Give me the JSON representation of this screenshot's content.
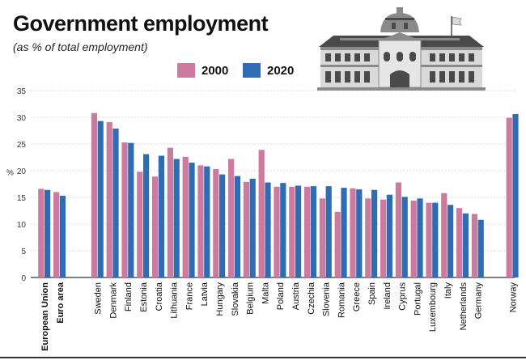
{
  "title": "Government employment",
  "subtitle": "(as % of total employment)",
  "icons": {
    "illustration": "government-building-icon"
  },
  "colors": {
    "s2000": "#cc7aa0",
    "s2020": "#2f6cb3",
    "grid": "#cccccc",
    "building_dark": "#4a4a4a",
    "building_mid": "#8a8a8a",
    "building_light": "#d9d9d9"
  },
  "chart_data": {
    "type": "bar",
    "title": "Government employment",
    "subtitle": "(as % of total employment)",
    "ylabel": "%",
    "ylim": [
      0,
      35
    ],
    "yticks": [
      0,
      5,
      10,
      15,
      20,
      25,
      30,
      35
    ],
    "grid": true,
    "legend": "top",
    "categories": [
      "European Union",
      "Euro area",
      "Sweden",
      "Denmark",
      "Finland",
      "Estonia",
      "Croatia",
      "Lithuania",
      "France",
      "Latvia",
      "Hungary",
      "Slovakia",
      "Belgium",
      "Malta",
      "Poland",
      "Austria",
      "Czechia",
      "Slovenia",
      "Romania",
      "Greece",
      "Spain",
      "Ireland",
      "Cyprus",
      "Portugal",
      "Luxembourg",
      "Italy",
      "Netherlands",
      "Germany",
      "Norway"
    ],
    "bold_categories": [
      "European Union",
      "Euro area"
    ],
    "series": [
      {
        "name": "2000",
        "color": "#cc7aa0",
        "values": [
          16.6,
          16.0,
          30.8,
          29.1,
          25.3,
          19.8,
          18.9,
          24.3,
          22.6,
          21.0,
          20.3,
          22.2,
          17.9,
          23.9,
          17.0,
          17.0,
          17.0,
          14.8,
          12.3,
          16.7,
          14.8,
          14.6,
          17.8,
          14.4,
          14.0,
          15.8,
          13.0,
          11.9,
          29.9
        ]
      },
      {
        "name": "2020",
        "color": "#2f6cb3",
        "values": [
          16.4,
          15.3,
          29.3,
          27.9,
          25.2,
          23.1,
          22.8,
          22.2,
          21.5,
          20.8,
          19.3,
          19.0,
          18.5,
          17.8,
          17.7,
          17.2,
          17.1,
          17.1,
          16.8,
          16.5,
          16.4,
          15.5,
          15.1,
          14.8,
          14.0,
          13.6,
          12.0,
          10.8,
          30.6
        ]
      }
    ]
  }
}
